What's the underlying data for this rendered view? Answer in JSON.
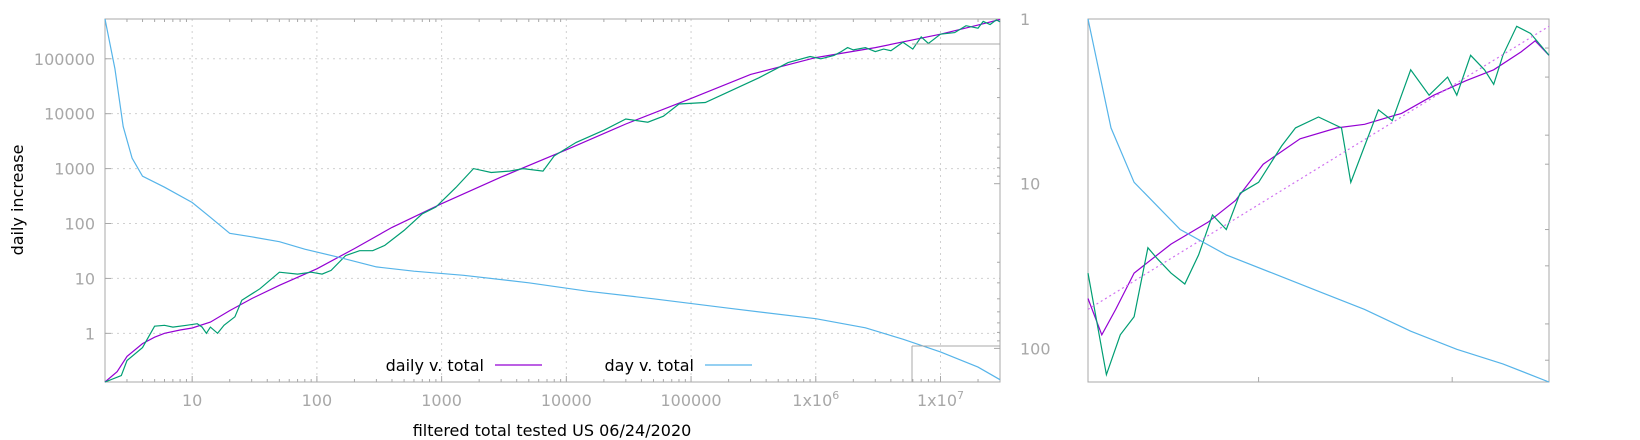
{
  "chart_data": [
    {
      "type": "line",
      "xlabel": "filtered total tested US 06/24/2020",
      "ylabel": "daily increase",
      "x_scale": "log",
      "y_scale": "log",
      "y2_scale": "log-reversed",
      "xlim": [
        2,
        30000000
      ],
      "ylim": [
        0.13,
        530000
      ],
      "y2lim": [
        1,
        160
      ],
      "x_ticks": [
        "10",
        "100",
        "1000",
        "10000",
        "100000",
        "1x10^6",
        "1x10^7"
      ],
      "y_ticks": [
        "1",
        "10",
        "100",
        "1000",
        "10000",
        "100000"
      ],
      "y2_ticks": [
        "1",
        "10",
        "100"
      ],
      "grid": true,
      "legend_position": "bottom-center",
      "series": [
        {
          "name": "daily v. total",
          "color": "#9400d3",
          "axis": "y",
          "points": [
            [
              2,
              0.13
            ],
            [
              2.5,
              0.2
            ],
            [
              3,
              0.38
            ],
            [
              4,
              0.65
            ],
            [
              5,
              0.85
            ],
            [
              6,
              1.0
            ],
            [
              8,
              1.15
            ],
            [
              10,
              1.25
            ],
            [
              14,
              1.6
            ],
            [
              20,
              2.6
            ],
            [
              30,
              4.3
            ],
            [
              50,
              7.5
            ],
            [
              100,
              15
            ],
            [
              200,
              35
            ],
            [
              400,
              85
            ],
            [
              1000,
              230
            ],
            [
              3000,
              700
            ],
            [
              10000,
              2200
            ],
            [
              30000,
              6500
            ],
            [
              100000,
              19000
            ],
            [
              300000,
              52000
            ],
            [
              1000000,
              105000
            ],
            [
              3000000,
              160000
            ],
            [
              10000000,
              280000
            ],
            [
              20000000,
              410000
            ],
            [
              30000000,
              520000
            ]
          ]
        },
        {
          "name": "",
          "color": "#009e73",
          "axis": "y",
          "points": [
            [
              2,
              0.13
            ],
            [
              2.7,
              0.17
            ],
            [
              3,
              0.32
            ],
            [
              4,
              0.55
            ],
            [
              5,
              1.35
            ],
            [
              6,
              1.4
            ],
            [
              7,
              1.3
            ],
            [
              9,
              1.4
            ],
            [
              11,
              1.5
            ],
            [
              12,
              1.3
            ],
            [
              13,
              1.0
            ],
            [
              14,
              1.3
            ],
            [
              16,
              1.0
            ],
            [
              18,
              1.4
            ],
            [
              22,
              2.0
            ],
            [
              25,
              4.0
            ],
            [
              35,
              6.5
            ],
            [
              50,
              13
            ],
            [
              70,
              12
            ],
            [
              90,
              13
            ],
            [
              110,
              12
            ],
            [
              130,
              14
            ],
            [
              170,
              26
            ],
            [
              220,
              32
            ],
            [
              280,
              32
            ],
            [
              350,
              40
            ],
            [
              500,
              75
            ],
            [
              700,
              150
            ],
            [
              900,
              200
            ],
            [
              1300,
              450
            ],
            [
              1800,
              1000
            ],
            [
              2500,
              850
            ],
            [
              3500,
              900
            ],
            [
              4500,
              1000
            ],
            [
              6500,
              900
            ],
            [
              8000,
              1700
            ],
            [
              12000,
              3000
            ],
            [
              20000,
              5000
            ],
            [
              30000,
              8000
            ],
            [
              45000,
              7000
            ],
            [
              60000,
              9000
            ],
            [
              80000,
              15000
            ],
            [
              130000,
              16000
            ],
            [
              200000,
              25000
            ],
            [
              350000,
              45000
            ],
            [
              600000,
              85000
            ],
            [
              900000,
              110000
            ],
            [
              1100000,
              100000
            ],
            [
              1400000,
              115000
            ],
            [
              1600000,
              135000
            ],
            [
              1800000,
              160000
            ],
            [
              2000000,
              145000
            ],
            [
              2500000,
              160000
            ],
            [
              3000000,
              135000
            ],
            [
              3500000,
              150000
            ],
            [
              4000000,
              140000
            ],
            [
              5000000,
              200000
            ],
            [
              6000000,
              150000
            ],
            [
              7000000,
              250000
            ],
            [
              8000000,
              190000
            ],
            [
              10000000,
              280000
            ],
            [
              13000000,
              300000
            ],
            [
              16000000,
              400000
            ],
            [
              20000000,
              360000
            ],
            [
              22000000,
              480000
            ],
            [
              25000000,
              420000
            ],
            [
              28000000,
              510000
            ],
            [
              30000000,
              470000
            ]
          ]
        },
        {
          "name": "day v. total",
          "color": "#56b4e9",
          "axis": "y2",
          "points": [
            [
              2,
              1.0
            ],
            [
              2.4,
              2.0
            ],
            [
              2.8,
              4.5
            ],
            [
              3.3,
              7.0
            ],
            [
              4,
              9.0
            ],
            [
              6,
              10.5
            ],
            [
              10,
              13
            ],
            [
              14,
              16
            ],
            [
              20,
              20
            ],
            [
              30,
              21
            ],
            [
              50,
              22.5
            ],
            [
              80,
              25
            ],
            [
              150,
              28
            ],
            [
              300,
              32
            ],
            [
              600,
              34
            ],
            [
              1500,
              36
            ],
            [
              5000,
              40
            ],
            [
              15000,
              45
            ],
            [
              50000,
              50
            ],
            [
              200000,
              57
            ],
            [
              1000000,
              66
            ],
            [
              2500000,
              75
            ],
            [
              5000000,
              88
            ],
            [
              10000000,
              105
            ],
            [
              20000000,
              130
            ],
            [
              30000000,
              155
            ]
          ]
        }
      ]
    },
    {
      "type": "line",
      "title": "",
      "inset": true,
      "series": [
        {
          "name": "",
          "color": "#9400d3",
          "points": [
            [
              0,
              0.23
            ],
            [
              0.03,
              0.13
            ],
            [
              0.06,
              0.2
            ],
            [
              0.1,
              0.3
            ],
            [
              0.18,
              0.38
            ],
            [
              0.26,
              0.44
            ],
            [
              0.32,
              0.5
            ],
            [
              0.38,
              0.6
            ],
            [
              0.46,
              0.67
            ],
            [
              0.54,
              0.7
            ],
            [
              0.6,
              0.71
            ],
            [
              0.68,
              0.74
            ],
            [
              0.75,
              0.79
            ],
            [
              0.82,
              0.83
            ],
            [
              0.88,
              0.86
            ],
            [
              0.94,
              0.91
            ],
            [
              0.97,
              0.94
            ],
            [
              1.0,
              0.9
            ]
          ]
        },
        {
          "name": "",
          "color": "#009e73",
          "points": [
            [
              0,
              0.3
            ],
            [
              0.04,
              0.02
            ],
            [
              0.07,
              0.13
            ],
            [
              0.1,
              0.18
            ],
            [
              0.13,
              0.37
            ],
            [
              0.15,
              0.34
            ],
            [
              0.18,
              0.3
            ],
            [
              0.21,
              0.27
            ],
            [
              0.24,
              0.35
            ],
            [
              0.27,
              0.46
            ],
            [
              0.3,
              0.42
            ],
            [
              0.33,
              0.52
            ],
            [
              0.37,
              0.55
            ],
            [
              0.42,
              0.65
            ],
            [
              0.45,
              0.7
            ],
            [
              0.5,
              0.73
            ],
            [
              0.55,
              0.7
            ],
            [
              0.57,
              0.55
            ],
            [
              0.6,
              0.65
            ],
            [
              0.63,
              0.75
            ],
            [
              0.66,
              0.72
            ],
            [
              0.7,
              0.86
            ],
            [
              0.74,
              0.79
            ],
            [
              0.78,
              0.84
            ],
            [
              0.8,
              0.79
            ],
            [
              0.83,
              0.9
            ],
            [
              0.86,
              0.86
            ],
            [
              0.88,
              0.82
            ],
            [
              0.9,
              0.9
            ],
            [
              0.93,
              0.98
            ],
            [
              0.96,
              0.96
            ],
            [
              1.0,
              0.9
            ]
          ]
        },
        {
          "name": "",
          "color": "#d070f0",
          "dashed": true,
          "points": [
            [
              0,
              0.2
            ],
            [
              1,
              0.98
            ]
          ]
        },
        {
          "name": "",
          "color": "#56b4e9",
          "points": [
            [
              0,
              1.0
            ],
            [
              0.05,
              0.7
            ],
            [
              0.1,
              0.55
            ],
            [
              0.2,
              0.42
            ],
            [
              0.3,
              0.35
            ],
            [
              0.4,
              0.3
            ],
            [
              0.5,
              0.25
            ],
            [
              0.6,
              0.2
            ],
            [
              0.7,
              0.14
            ],
            [
              0.8,
              0.09
            ],
            [
              0.9,
              0.05
            ],
            [
              1.0,
              0.0
            ]
          ]
        }
      ]
    }
  ]
}
